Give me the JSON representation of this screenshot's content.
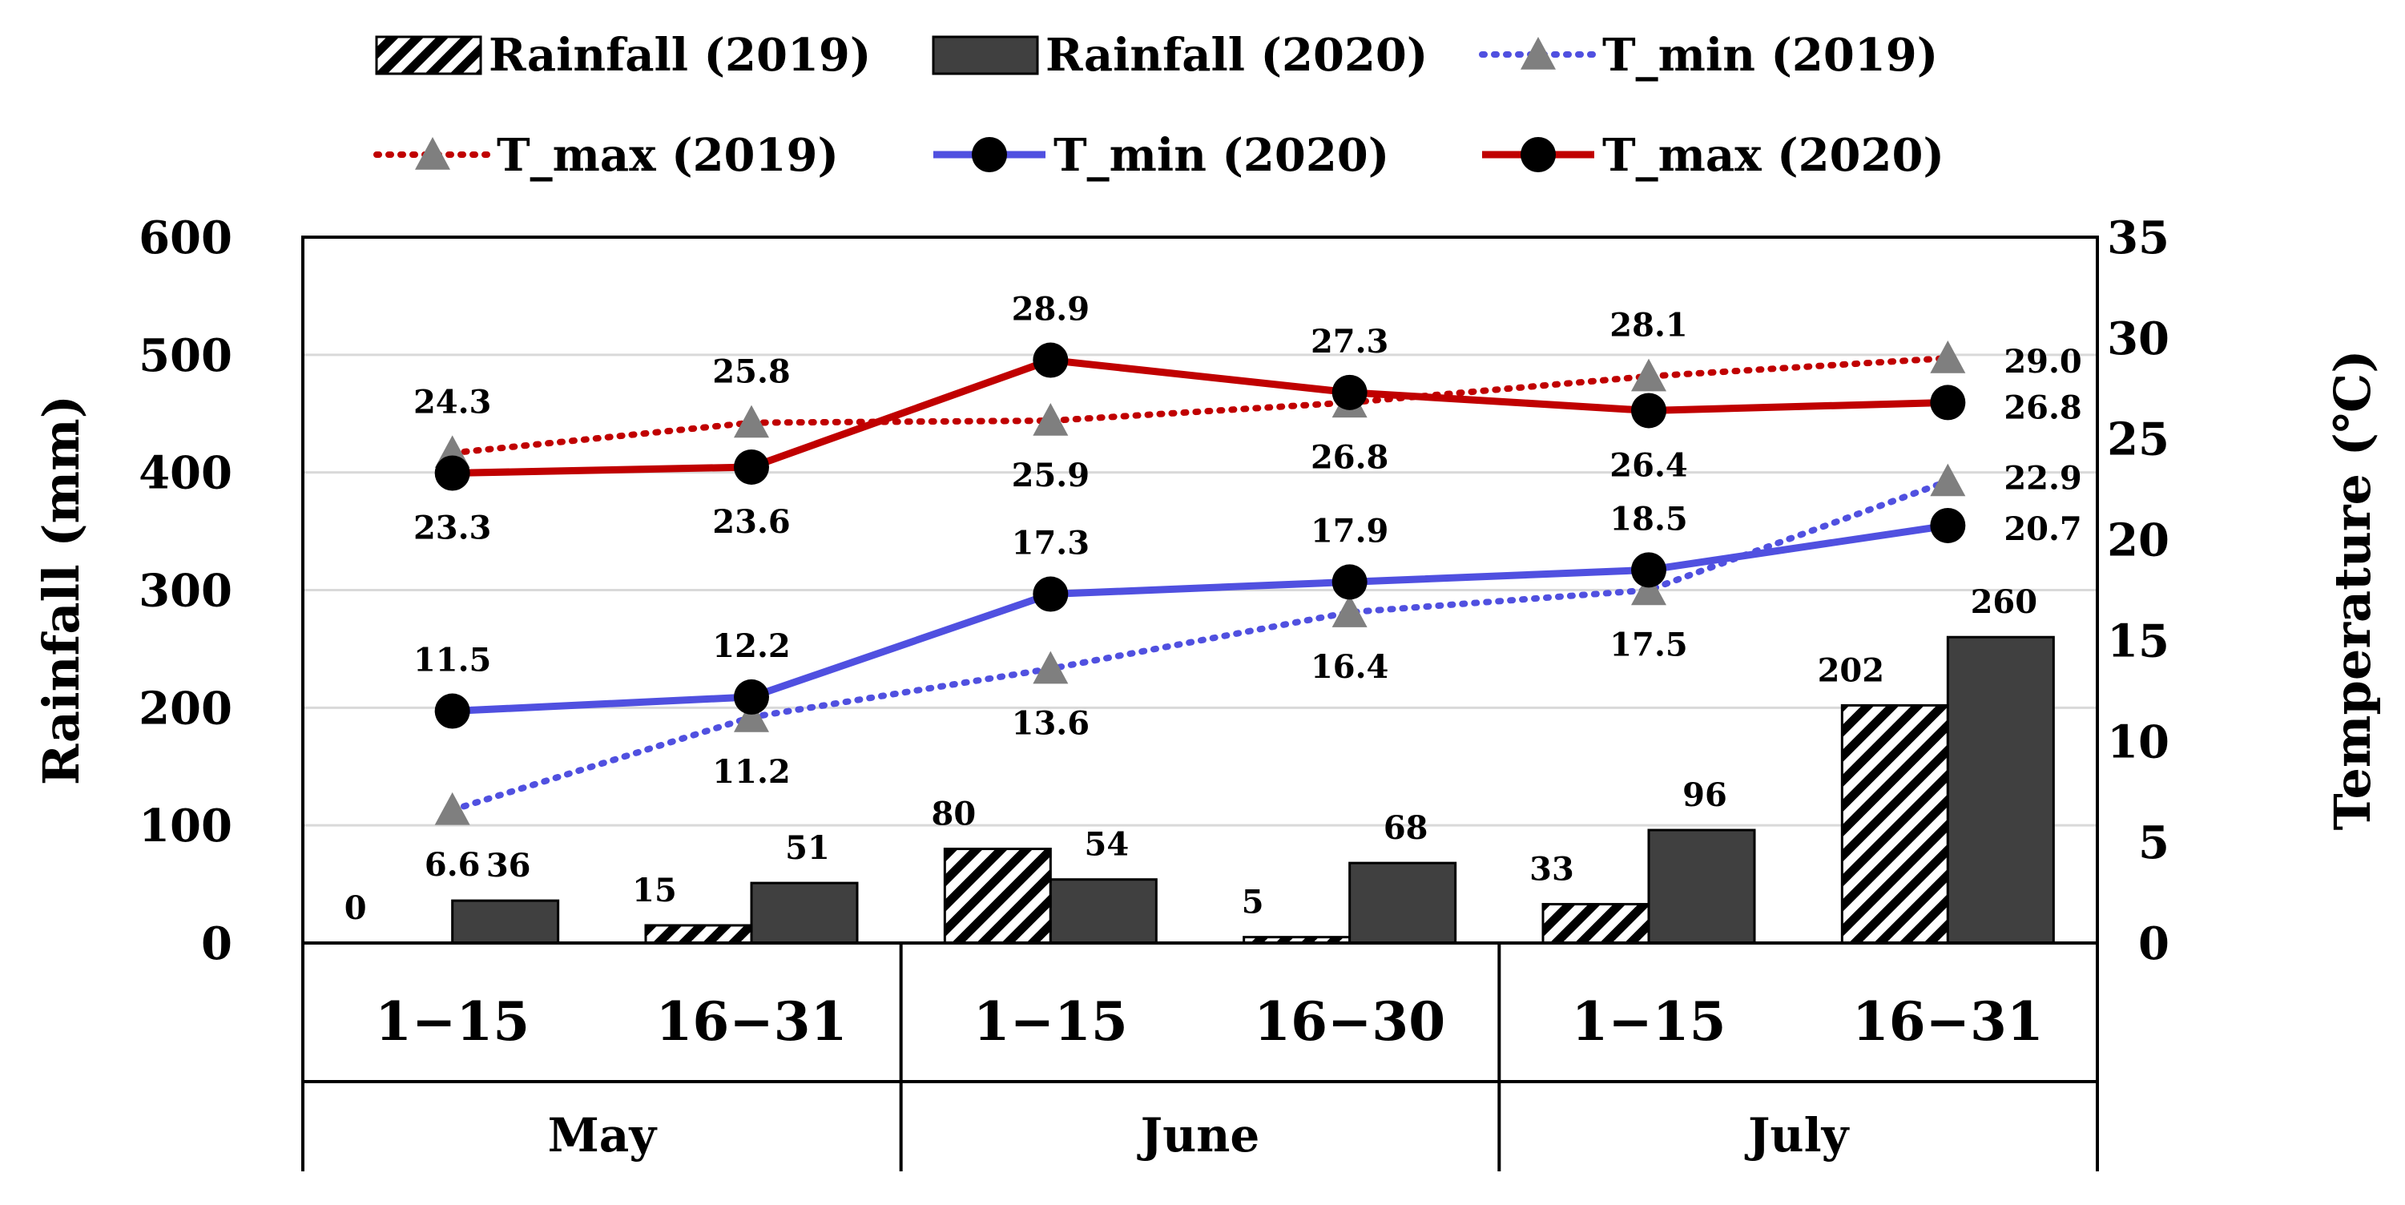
{
  "chart_data": {
    "type": "bar+line",
    "title": "",
    "categories": [
      "1−15",
      "16−31",
      "1−15",
      "16−30",
      "1−15",
      "16−31"
    ],
    "groups": [
      "May",
      "June",
      "July"
    ],
    "ylabel_left": "Rainfall (mm)",
    "ylabel_right": "Temperature (℃)",
    "ylim_left": [
      0,
      600
    ],
    "ylim_right": [
      0,
      35
    ],
    "yticks_left": [
      "0",
      "100",
      "200",
      "300",
      "400",
      "500",
      "600"
    ],
    "yticks_right": [
      "0",
      "5",
      "10",
      "15",
      "20",
      "25",
      "30",
      "35"
    ],
    "grid": true,
    "legend_position": "top",
    "bar_series": [
      {
        "name": "Rainfall (2019)",
        "values": [
          0,
          15,
          80,
          5,
          33,
          202
        ],
        "labels": [
          "0",
          "15",
          "80",
          "5",
          "33",
          "202"
        ],
        "style": "hatched"
      },
      {
        "name": "Rainfall (2020)",
        "values": [
          36,
          51,
          54,
          68,
          96,
          260
        ],
        "labels": [
          "36",
          "51",
          "54",
          "68",
          "96",
          "260"
        ],
        "style": "solid",
        "color": "#404040"
      }
    ],
    "line_series": [
      {
        "name": "T_min (2019)",
        "values": [
          6.6,
          11.2,
          13.6,
          16.4,
          17.5,
          22.9
        ],
        "labels": [
          "6.6",
          "11.2",
          "13.6",
          "16.4",
          "17.5",
          "22.9"
        ],
        "color": "#5050e0",
        "dash": "dotted",
        "marker": "triangle"
      },
      {
        "name": "T_max (2019)",
        "values": [
          24.3,
          25.8,
          25.9,
          26.8,
          28.1,
          29.0
        ],
        "labels": [
          "24.3",
          "25.8",
          "25.9",
          "26.8",
          "28.1",
          "29.0"
        ],
        "color": "#c00000",
        "dash": "dotted",
        "marker": "triangle"
      },
      {
        "name": "T_min (2020)",
        "values": [
          11.5,
          12.2,
          17.3,
          17.9,
          18.5,
          20.7
        ],
        "labels": [
          "11.5",
          "12.2",
          "17.3",
          "17.9",
          "18.5",
          "20.7"
        ],
        "color": "#5050e0",
        "dash": "solid",
        "marker": "circle"
      },
      {
        "name": "T_max (2020)",
        "values": [
          23.3,
          23.6,
          28.9,
          27.3,
          26.4,
          26.8
        ],
        "labels": [
          "23.3",
          "23.6",
          "28.9",
          "27.3",
          "26.4",
          "26.8"
        ],
        "color": "#c00000",
        "dash": "solid",
        "marker": "circle"
      }
    ]
  }
}
